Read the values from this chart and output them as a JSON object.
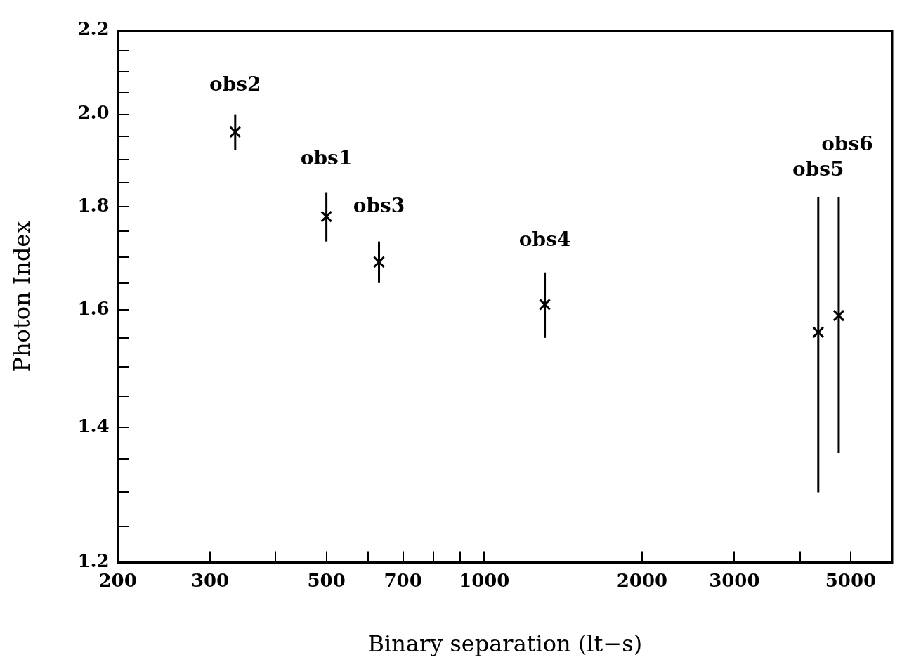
{
  "chart_data": {
    "type": "scatter",
    "xlabel": "Binary separation (lt−s)",
    "ylabel": "Photon Index",
    "x": [
      500,
      335,
      630,
      1305,
      4337,
      4745
    ],
    "values": [
      1.78,
      1.96,
      1.69,
      1.61,
      1.56,
      1.59
    ],
    "errors": [
      0.05,
      [
        1.92,
        2.0
      ],
      0.04,
      0.06,
      [
        1.3,
        1.82
      ],
      [
        1.36,
        1.82
      ]
    ],
    "color": "#000000",
    "marker": "cross",
    "log": "xy",
    "grid": false,
    "legend": false,
    "xlim": [
      200,
      6000
    ],
    "xticks": [
      200,
      300,
      {
        "value": 400,
        "label": null
      },
      500,
      {
        "value": 600,
        "label": null
      },
      700,
      {
        "value": 800,
        "label": null
      },
      {
        "value": 900,
        "label": null
      },
      1000,
      2000,
      3000,
      {
        "value": 4000,
        "label": null
      },
      5000
    ],
    "ylim": [
      1.2,
      2.2
    ],
    "yticks": [
      1.2,
      {
        "value": 1.25,
        "label": null
      },
      {
        "value": 1.3,
        "label": null
      },
      {
        "value": 1.35,
        "label": null
      },
      1.4,
      {
        "value": 1.45,
        "label": null
      },
      {
        "value": 1.5,
        "label": null
      },
      {
        "value": 1.55,
        "label": null
      },
      1.6,
      {
        "value": 1.65,
        "label": null
      },
      {
        "value": 1.7,
        "label": null
      },
      {
        "value": 1.75,
        "label": null
      },
      1.8,
      {
        "value": 1.85,
        "label": null
      },
      {
        "value": 1.9,
        "label": null
      },
      {
        "value": 1.95,
        "label": null
      },
      {
        "value": 2,
        "label": "2.0"
      },
      {
        "value": 2.05,
        "label": null
      },
      {
        "value": 2.1,
        "label": null
      },
      {
        "value": 2.15,
        "label": null
      },
      2.2
    ],
    "annotations": [
      {
        "text": "obs2",
        "x": 335,
        "y": 1.96
      },
      {
        "text": "obs1",
        "x": 500,
        "y": 1.78
      },
      {
        "text": "obs3",
        "x": 630,
        "y": 1.69
      },
      {
        "text": "obs4",
        "x": 1305,
        "y": 1.61
      },
      {
        "text": "obs5",
        "x": 4337,
        "y": 1.82
      },
      {
        "text": "obs6",
        "x": 4745,
        "y": 1.82
      }
    ]
  }
}
